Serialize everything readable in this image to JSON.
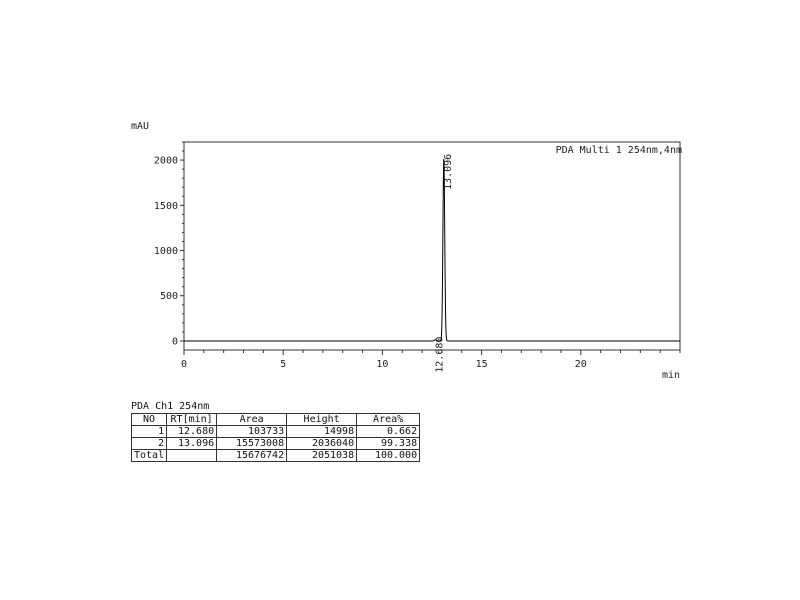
{
  "chart_data": {
    "type": "line",
    "ylabel": "mAU",
    "xlabel": "min",
    "xlim": [
      0,
      25
    ],
    "ylim": [
      -100,
      2200
    ],
    "x_ticks": [
      0,
      5,
      10,
      15,
      20
    ],
    "y_ticks": [
      0,
      500,
      1000,
      1500,
      2000
    ],
    "legend": "PDA Multi 1 254nm,4nm",
    "legend_position": "top-right",
    "grid": false,
    "baseline": 0,
    "peaks": [
      {
        "rt": 12.68,
        "label": "12.680",
        "height_mau": 15.0
      },
      {
        "rt": 13.096,
        "label": "13.096",
        "height_mau": 2036.0
      }
    ]
  },
  "table": {
    "title": "PDA Ch1 254nm",
    "headers": [
      "NO",
      "RT[min]",
      "Area",
      "Height",
      "Area%"
    ],
    "rows": [
      [
        "1",
        "12.680",
        "103733",
        "14998",
        "0.662"
      ],
      [
        "2",
        "13.096",
        "15573008",
        "2036040",
        "99.338"
      ]
    ],
    "total": [
      "Total",
      "",
      "15676742",
      "2051038",
      "100.000"
    ]
  }
}
